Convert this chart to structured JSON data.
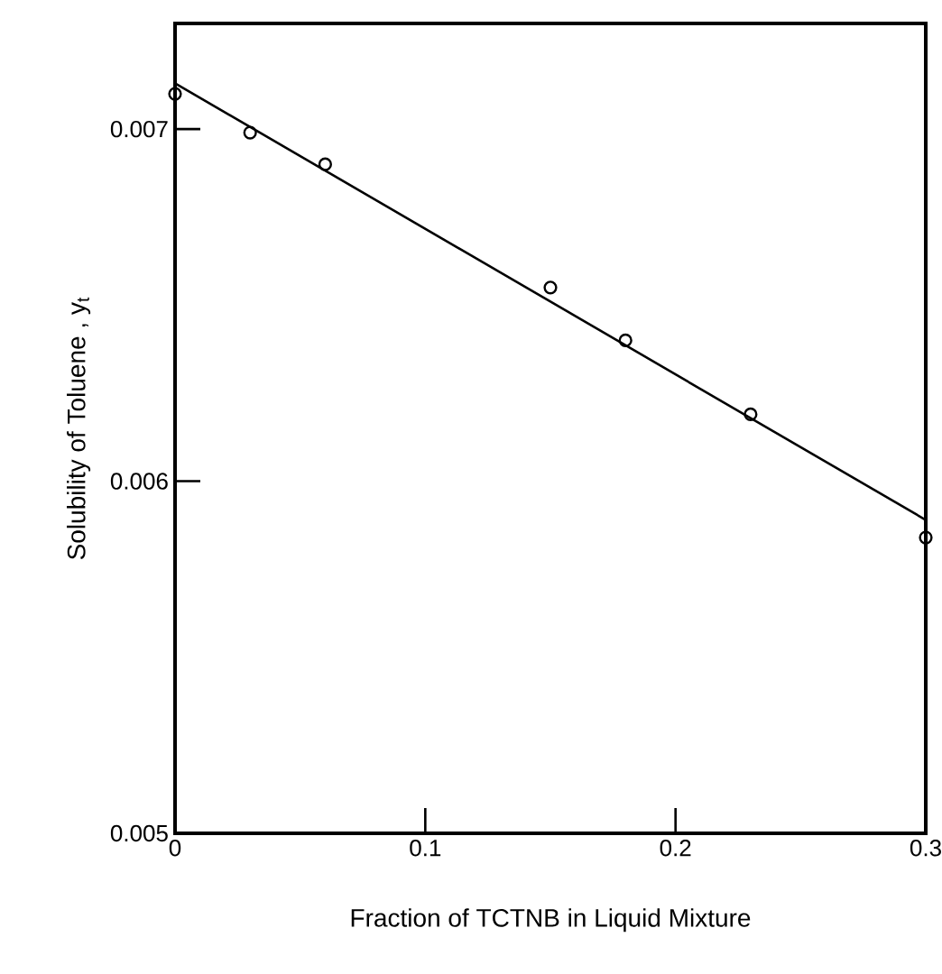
{
  "chart_data": {
    "type": "scatter",
    "xlabel": "Fraction of TCTNB in Liquid Mixture",
    "ylabel": "Solubility of Toluene , y$_{t}$",
    "series": [
      {
        "color": "#000000",
        "marker": "circle",
        "x": [
          0,
          0.03,
          0.06,
          0.15,
          0.18,
          0.23,
          0.3
        ],
        "values": [
          0.0071,
          0.00699,
          0.0069,
          0.00655,
          0.0064,
          0.00619,
          0.00584
        ]
      },
      {
        "type": "line",
        "color": "#000000",
        "marker": "none",
        "line_style": "solid",
        "x": [
          0,
          0.3
        ],
        "values": [
          0.00713,
          0.00589
        ]
      }
    ],
    "xlim": [
      0,
      0.3
    ],
    "ylim": [
      0.005,
      0.0073
    ],
    "xticks": [
      0,
      0.1,
      0.2,
      0.3
    ],
    "yticks": [
      0.005,
      0.006,
      0.007
    ],
    "grid": false
  }
}
